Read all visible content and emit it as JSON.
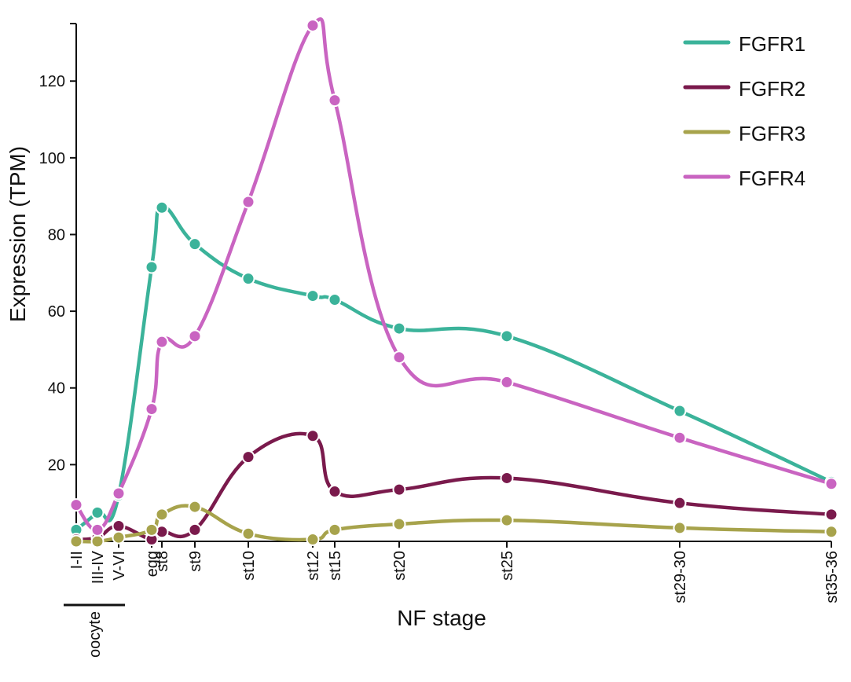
{
  "chart_data": {
    "type": "line",
    "xlabel": "NF stage",
    "ylabel": "Expression (TPM)",
    "ylim": [
      0,
      135
    ],
    "yticks": [
      20,
      40,
      60,
      80,
      100,
      120
    ],
    "x_tick_labels": [
      "I-II",
      "III-IV",
      "V-VI",
      "egg",
      "st8",
      "st9",
      "st10",
      "st12",
      "st15",
      "st20",
      "st25",
      "st29-30",
      "st35-36"
    ],
    "x_group_label": "oocyte",
    "x_group_members": [
      "I-II",
      "III-IV",
      "V-VI"
    ],
    "legend_position": "top-right",
    "series": [
      {
        "name": "FGFR1",
        "color": "#3bb39a",
        "points": [
          {
            "x": "I-II",
            "y": 3
          },
          {
            "x": "III-IV",
            "y": 7.5
          },
          {
            "x": "V-VI",
            "y": 12
          },
          {
            "x": "egg",
            "y": 71.5
          },
          {
            "x": "st8",
            "y": 87
          },
          {
            "x": "st9",
            "y": 77.5
          },
          {
            "x": "st10",
            "y": 68.5
          },
          {
            "x": "st12",
            "y": 64
          },
          {
            "x": "st15",
            "y": 63
          },
          {
            "x": "st20",
            "y": 55.5
          },
          {
            "x": "st25",
            "y": 53.5
          },
          {
            "x": "st29-30",
            "y": 34
          },
          {
            "x": "st35-36",
            "y": 15.5
          }
        ]
      },
      {
        "name": "FGFR2",
        "color": "#7a1a4c",
        "points": [
          {
            "x": "I-II",
            "y": 0.5
          },
          {
            "x": "III-IV",
            "y": 1
          },
          {
            "x": "V-VI",
            "y": 4
          },
          {
            "x": "egg",
            "y": 0.5
          },
          {
            "x": "st8",
            "y": 2.5
          },
          {
            "x": "st9",
            "y": 3
          },
          {
            "x": "st10",
            "y": 22
          },
          {
            "x": "st12",
            "y": 27.5
          },
          {
            "x": "st15",
            "y": 13
          },
          {
            "x": "st20",
            "y": 13.5
          },
          {
            "x": "st25",
            "y": 16.5
          },
          {
            "x": "st29-30",
            "y": 10
          },
          {
            "x": "st35-36",
            "y": 7
          }
        ]
      },
      {
        "name": "FGFR3",
        "color": "#a7a34c",
        "points": [
          {
            "x": "I-II",
            "y": 0
          },
          {
            "x": "III-IV",
            "y": 0
          },
          {
            "x": "V-VI",
            "y": 1
          },
          {
            "x": "egg",
            "y": 3
          },
          {
            "x": "st8",
            "y": 7
          },
          {
            "x": "st9",
            "y": 9
          },
          {
            "x": "st10",
            "y": 2
          },
          {
            "x": "st12",
            "y": 0.5
          },
          {
            "x": "st15",
            "y": 3
          },
          {
            "x": "st20",
            "y": 4.5
          },
          {
            "x": "st25",
            "y": 5.5
          },
          {
            "x": "st29-30",
            "y": 3.5
          },
          {
            "x": "st35-36",
            "y": 2.5
          }
        ]
      },
      {
        "name": "FGFR4",
        "color": "#c964c1",
        "points": [
          {
            "x": "I-II",
            "y": 9.5
          },
          {
            "x": "III-IV",
            "y": 3
          },
          {
            "x": "V-VI",
            "y": 12.5
          },
          {
            "x": "egg",
            "y": 34.5
          },
          {
            "x": "st8",
            "y": 52
          },
          {
            "x": "st9",
            "y": 53.5
          },
          {
            "x": "st10",
            "y": 88.5
          },
          {
            "x": "st12",
            "y": 134.5
          },
          {
            "x": "st15",
            "y": 115
          },
          {
            "x": "st20",
            "y": 48
          },
          {
            "x": "st25",
            "y": 41.5
          },
          {
            "x": "st29-30",
            "y": 27
          },
          {
            "x": "st35-36",
            "y": 15
          }
        ]
      }
    ]
  }
}
